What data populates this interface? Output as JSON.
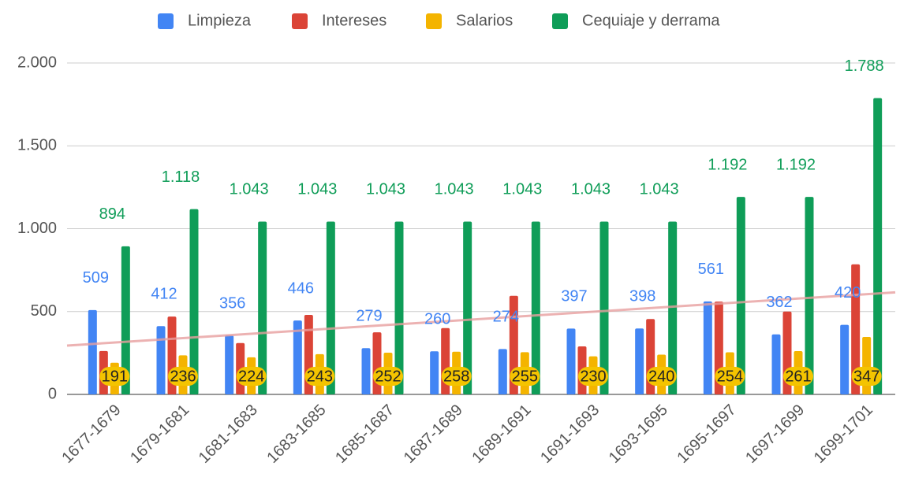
{
  "chart_data": {
    "type": "bar",
    "categories": [
      "1677-1679",
      "1679-1681",
      "1681-1683",
      "1683-1685",
      "1685-1687",
      "1687-1689",
      "1689-1691",
      "1691-1693",
      "1693-1695",
      "1695-1697",
      "1697-1699",
      "1699-1701"
    ],
    "series": [
      {
        "name": "Limpieza",
        "color": "#4285f4",
        "values": [
          509,
          412,
          356,
          446,
          279,
          260,
          274,
          397,
          398,
          561,
          362,
          420
        ]
      },
      {
        "name": "Intereses",
        "color": "#db4437",
        "values": [
          262,
          470,
          310,
          480,
          375,
          400,
          595,
          290,
          455,
          560,
          500,
          785
        ]
      },
      {
        "name": "Salarios",
        "color": "#f4b400",
        "values": [
          191,
          236,
          224,
          243,
          252,
          258,
          255,
          230,
          240,
          254,
          261,
          347
        ]
      },
      {
        "name": "Cequiaje y derrama",
        "color": "#0f9d58",
        "values": [
          894,
          1118,
          1043,
          1043,
          1043,
          1043,
          1043,
          1043,
          1043,
          1192,
          1192,
          1788
        ],
        "value_labels": [
          "894",
          "1.118",
          "1.043",
          "1.043",
          "1.043",
          "1.043",
          "1.043",
          "1.043",
          "1.043",
          "1.192",
          "1.192",
          "1.788"
        ]
      }
    ],
    "ylim": [
      0,
      2000
    ],
    "yticks": [
      0,
      500,
      {
        "value": 1000,
        "label": "1.000"
      },
      {
        "value": 1500,
        "label": "1.500"
      },
      {
        "value": 2000,
        "label": "2.000"
      }
    ],
    "grid": true,
    "legend": "top"
  }
}
